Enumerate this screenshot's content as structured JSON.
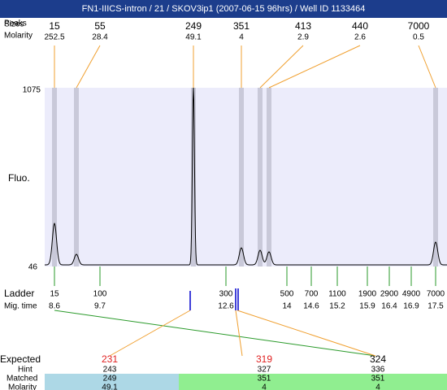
{
  "header": {
    "title": "FN1-IIICS-intron / 21 / SKOV3ip1 (2007-06-15 96hrs) / Well ID 1133464"
  },
  "labels": {
    "sizes": "Sizes",
    "peaks": "Peaks",
    "molarity": "Molarity",
    "fluo": "Fluo.",
    "y_max": "1075",
    "y_min": "46",
    "ladder": "Ladder",
    "mig_time": "Mig. time",
    "expected": "Expected",
    "hint": "Hint",
    "matched": "Matched",
    "molarity_row": "Molarity"
  },
  "peaks": [
    {
      "size": 15,
      "molarity": 252.5
    },
    {
      "size": 55,
      "molarity": 28.4
    },
    {
      "size": 249,
      "molarity": 49.1
    },
    {
      "size": 351,
      "molarity": 4
    },
    {
      "size": 413,
      "molarity": 2.9
    },
    {
      "size": 440,
      "molarity": 2.6
    },
    {
      "size": 7000,
      "molarity": 0.5
    }
  ],
  "ladder": [
    {
      "size": 15,
      "time": 8.6
    },
    {
      "size": 100,
      "time": 9.7
    },
    {
      "size": 300,
      "time": 12.6
    },
    {
      "size": 500,
      "time": 14
    },
    {
      "size": 700,
      "time": 14.6
    },
    {
      "size": 1100,
      "time": 15.2
    },
    {
      "size": 1900,
      "time": 15.9
    },
    {
      "size": 2900,
      "time": 16.4
    },
    {
      "size": 4900,
      "time": 16.9
    },
    {
      "size": 7000,
      "time": 17.5
    }
  ],
  "matches": [
    {
      "expected": 231,
      "hint": 243,
      "matched": 249,
      "molarity": 49.1
    },
    {
      "expected": 319,
      "hint": 327,
      "matched": 351,
      "molarity": 4
    },
    {
      "expected": 324,
      "hint": 336,
      "matched": 351,
      "molarity": 4
    }
  ]
}
